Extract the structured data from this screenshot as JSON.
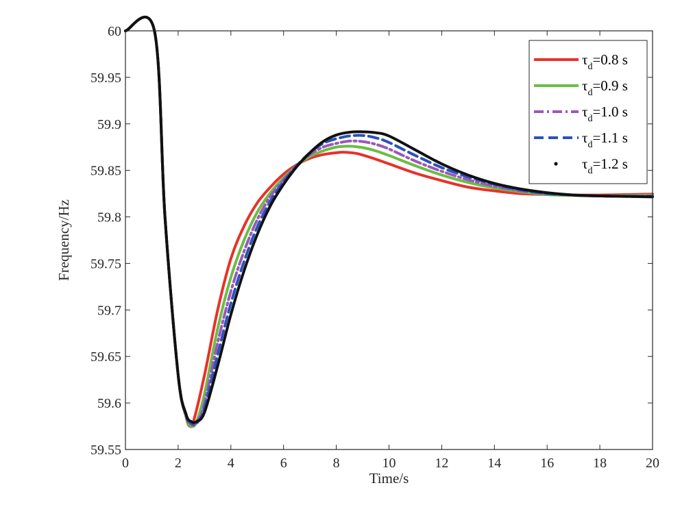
{
  "chart_data": {
    "type": "line",
    "title": "",
    "xlabel": "Time/s",
    "ylabel": "Frequency/Hz",
    "xlim": [
      0,
      20
    ],
    "ylim": [
      59.55,
      60
    ],
    "xticks": [
      0,
      2,
      4,
      6,
      8,
      10,
      12,
      14,
      16,
      18,
      20
    ],
    "yticks": [
      59.55,
      59.6,
      59.65,
      59.7,
      59.75,
      59.8,
      59.85,
      59.9,
      59.95,
      60
    ],
    "ytick_labels": [
      "59.55",
      "59.6",
      "59.65",
      "59.7",
      "59.75",
      "59.8",
      "59.85",
      "59.9",
      "59.95",
      "60"
    ],
    "grid": false,
    "legend_position": "top-right",
    "series": [
      {
        "name": "τd=0.8 s",
        "legend_base": "τ",
        "legend_sub": "d",
        "legend_rest": "=0.8 s",
        "color": "#e8312a",
        "style": "solid",
        "x": [
          0,
          1.1,
          1.5,
          2.0,
          2.3,
          2.45,
          2.6,
          3.0,
          3.5,
          4.0,
          4.5,
          5.0,
          5.5,
          6.0,
          6.5,
          7.0,
          7.5,
          8.0,
          8.3,
          8.8,
          9.5,
          10,
          11,
          12,
          13,
          14,
          15,
          16,
          17,
          18,
          19,
          20
        ],
        "y": [
          60,
          60,
          59.8,
          59.63,
          59.585,
          59.575,
          59.582,
          59.63,
          59.7,
          59.755,
          59.79,
          59.815,
          59.832,
          59.846,
          59.856,
          59.863,
          59.867,
          59.869,
          59.8695,
          59.868,
          59.862,
          59.857,
          59.847,
          59.839,
          59.832,
          59.828,
          59.825,
          59.824,
          59.8235,
          59.8235,
          59.824,
          59.8245
        ]
      },
      {
        "name": "τd=0.9 s",
        "legend_base": "τ",
        "legend_sub": "d",
        "legend_rest": "=0.9 s",
        "color": "#6bbd45",
        "style": "solid",
        "x": [
          0,
          1.1,
          1.5,
          2.0,
          2.3,
          2.5,
          2.7,
          3.0,
          3.5,
          4.0,
          4.5,
          5.0,
          5.5,
          6.0,
          6.5,
          7.0,
          7.5,
          8.0,
          8.5,
          9.0,
          9.5,
          10,
          11,
          12,
          13,
          14,
          15,
          16,
          17,
          18,
          19,
          20
        ],
        "y": [
          60,
          60,
          59.8,
          59.63,
          59.585,
          59.575,
          59.58,
          59.61,
          59.68,
          59.735,
          59.775,
          59.805,
          59.826,
          59.842,
          59.855,
          59.865,
          59.871,
          59.875,
          59.876,
          59.8745,
          59.871,
          59.866,
          59.855,
          59.845,
          59.837,
          59.831,
          59.827,
          59.824,
          59.823,
          59.8225,
          59.823,
          59.8235
        ]
      },
      {
        "name": "τd=1.0 s",
        "legend_base": "τ",
        "legend_sub": "d",
        "legend_rest": "=1.0 s",
        "color": "#9b59b6",
        "style": "dashdot",
        "x": [
          0,
          1.1,
          1.5,
          2.0,
          2.3,
          2.5,
          2.7,
          3.0,
          3.5,
          4.0,
          4.5,
          5.0,
          5.5,
          6.0,
          6.5,
          7.0,
          7.5,
          8.0,
          8.5,
          9.0,
          9.5,
          10,
          11,
          12,
          13,
          14,
          15,
          16,
          17,
          18,
          19,
          20
        ],
        "y": [
          60,
          60,
          59.8,
          59.63,
          59.586,
          59.577,
          59.579,
          59.6,
          59.665,
          59.72,
          59.763,
          59.797,
          59.822,
          59.84,
          59.855,
          59.867,
          59.875,
          59.879,
          59.8815,
          59.881,
          59.878,
          59.873,
          59.86,
          59.849,
          59.84,
          59.833,
          59.828,
          59.825,
          59.8235,
          59.8225,
          59.8225,
          59.8225
        ]
      },
      {
        "name": "τd=1.1 s",
        "legend_base": "τ",
        "legend_sub": "d",
        "legend_rest": "=1.1 s",
        "color": "#2a52be",
        "style": "dashed",
        "x": [
          0,
          1.1,
          1.5,
          2.0,
          2.3,
          2.5,
          2.7,
          3.0,
          3.5,
          4.0,
          4.5,
          5.0,
          5.5,
          6.0,
          6.5,
          7.0,
          7.5,
          8.0,
          8.5,
          9.0,
          9.5,
          10,
          11,
          12,
          13,
          14,
          15,
          16,
          17,
          18,
          19,
          20
        ],
        "y": [
          60,
          60,
          59.8,
          59.63,
          59.587,
          59.578,
          59.578,
          59.595,
          59.652,
          59.707,
          59.752,
          59.789,
          59.817,
          59.838,
          59.855,
          59.869,
          59.879,
          59.884,
          59.887,
          59.8875,
          59.885,
          59.88,
          59.866,
          59.853,
          59.843,
          59.835,
          59.829,
          59.825,
          59.8235,
          59.8225,
          59.822,
          59.822
        ]
      },
      {
        "name": "τd=1.2 s",
        "legend_base": "τ",
        "legend_sub": "d",
        "legend_rest": "=1.2 s",
        "color": "#111111",
        "style": "dotted",
        "x": [
          0,
          1.1,
          1.5,
          2.0,
          2.3,
          2.5,
          2.7,
          3.0,
          3.5,
          4.0,
          4.5,
          5.0,
          5.5,
          6.0,
          6.5,
          7.0,
          7.5,
          8.0,
          8.5,
          9.0,
          9.5,
          10,
          11,
          12,
          13,
          14,
          15,
          16,
          17,
          18,
          19,
          20
        ],
        "y": [
          60,
          60,
          59.8,
          59.63,
          59.588,
          59.58,
          59.58,
          59.59,
          59.64,
          59.695,
          59.742,
          59.781,
          59.812,
          59.835,
          59.854,
          59.869,
          59.881,
          59.888,
          59.891,
          59.8915,
          59.8905,
          59.887,
          59.872,
          59.857,
          59.845,
          59.836,
          59.83,
          59.826,
          59.8235,
          59.8225,
          59.822,
          59.8215
        ]
      }
    ]
  }
}
